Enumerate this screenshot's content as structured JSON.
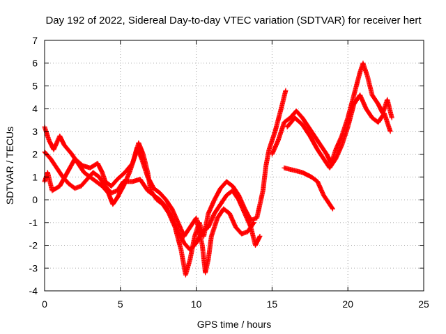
{
  "chart_data": {
    "type": "scatter",
    "title": "Day 192 of 2022, Sidereal Day-to-day VTEC variation (SDTVAR) for receiver hert",
    "xlabel": "GPS time / hours",
    "ylabel": "SDTVAR / TECUs",
    "xlim": [
      0,
      25
    ],
    "ylim": [
      -4,
      7
    ],
    "x_ticks": [
      0,
      5,
      10,
      15,
      20,
      25
    ],
    "y_ticks": [
      -4,
      -3,
      -2,
      -1,
      0,
      1,
      2,
      3,
      4,
      5,
      6,
      7
    ],
    "grid": true,
    "marker": "plus",
    "color": "#ff0000",
    "series": [
      {
        "name": "track-1",
        "points": [
          [
            0.0,
            3.2
          ],
          [
            0.3,
            2.6
          ],
          [
            0.6,
            2.2
          ],
          [
            1.0,
            2.8
          ],
          [
            1.3,
            2.4
          ],
          [
            1.8,
            2.0
          ],
          [
            2.2,
            1.6
          ],
          [
            2.6,
            1.2
          ],
          [
            3.0,
            1.0
          ],
          [
            3.4,
            0.8
          ],
          [
            3.8,
            0.6
          ],
          [
            4.2,
            0.3
          ],
          [
            4.5,
            -0.2
          ],
          [
            4.8,
            0.1
          ],
          [
            5.2,
            0.6
          ],
          [
            5.6,
            1.2
          ],
          [
            6.0,
            2.0
          ],
          [
            6.2,
            2.5
          ],
          [
            6.5,
            2.0
          ],
          [
            6.8,
            1.2
          ],
          [
            7.0,
            0.4
          ],
          [
            7.4,
            0.0
          ],
          [
            7.8,
            -0.2
          ],
          [
            8.2,
            -0.6
          ],
          [
            8.6,
            -1.2
          ],
          [
            9.0,
            -2.2
          ],
          [
            9.3,
            -3.3
          ],
          [
            9.6,
            -2.6
          ],
          [
            9.9,
            -1.6
          ],
          [
            10.2,
            -1.0
          ],
          [
            10.5,
            -1.6
          ],
          [
            10.8,
            -0.6
          ],
          [
            11.2,
            0.0
          ],
          [
            11.6,
            0.5
          ],
          [
            12.0,
            0.8
          ],
          [
            12.4,
            0.6
          ],
          [
            12.8,
            0.2
          ],
          [
            13.2,
            -0.4
          ],
          [
            13.6,
            -0.9
          ],
          [
            14.0,
            -0.8
          ],
          [
            14.2,
            -0.2
          ],
          [
            14.4,
            0.4
          ],
          [
            14.6,
            1.5
          ],
          [
            14.8,
            2.2
          ],
          [
            15.2,
            3.0
          ],
          [
            15.6,
            4.0
          ],
          [
            15.9,
            4.8
          ]
        ]
      },
      {
        "name": "track-2",
        "points": [
          [
            0.0,
            2.1
          ],
          [
            0.4,
            1.8
          ],
          [
            0.8,
            1.4
          ],
          [
            1.2,
            1.0
          ],
          [
            1.6,
            0.7
          ],
          [
            2.0,
            0.5
          ],
          [
            2.4,
            0.6
          ],
          [
            2.8,
            0.9
          ],
          [
            3.2,
            1.2
          ],
          [
            3.6,
            1.0
          ],
          [
            4.0,
            0.6
          ],
          [
            4.4,
            0.3
          ],
          [
            4.8,
            0.4
          ],
          [
            5.2,
            0.8
          ],
          [
            5.8,
            0.8
          ],
          [
            6.3,
            0.9
          ],
          [
            6.8,
            0.4
          ],
          [
            7.2,
            0.2
          ],
          [
            7.6,
            0.0
          ],
          [
            8.0,
            -0.3
          ],
          [
            8.4,
            -0.8
          ],
          [
            8.8,
            -1.4
          ],
          [
            9.2,
            -1.9
          ],
          [
            9.6,
            -2.2
          ],
          [
            10.0,
            -1.9
          ],
          [
            10.4,
            -1.4
          ],
          [
            10.8,
            -1.2
          ],
          [
            11.2,
            -0.6
          ],
          [
            11.6,
            -0.2
          ],
          [
            12.0,
            0.2
          ],
          [
            12.4,
            0.4
          ],
          [
            12.8,
            0.0
          ],
          [
            13.2,
            -0.6
          ],
          [
            13.6,
            -1.2
          ],
          [
            13.9,
            -2.0
          ],
          [
            14.2,
            -1.6
          ]
        ]
      },
      {
        "name": "track-3",
        "points": [
          [
            0.0,
            0.8
          ],
          [
            0.2,
            1.2
          ],
          [
            0.5,
            0.4
          ],
          [
            1.0,
            0.6
          ],
          [
            1.5,
            1.2
          ],
          [
            2.0,
            1.8
          ],
          [
            2.5,
            1.5
          ],
          [
            3.0,
            1.4
          ],
          [
            3.5,
            1.6
          ],
          [
            3.8,
            1.2
          ],
          [
            4.0,
            0.8
          ],
          [
            4.4,
            0.6
          ],
          [
            4.8,
            0.9
          ],
          [
            5.3,
            1.2
          ],
          [
            5.8,
            1.6
          ],
          [
            6.1,
            2.3
          ],
          [
            6.4,
            1.8
          ],
          [
            6.8,
            1.0
          ],
          [
            7.2,
            0.5
          ],
          [
            7.6,
            0.3
          ],
          [
            8.0,
            0.0
          ],
          [
            8.4,
            -0.4
          ],
          [
            8.8,
            -1.0
          ],
          [
            9.2,
            -1.6
          ],
          [
            9.6,
            -1.2
          ],
          [
            10.0,
            -0.8
          ],
          [
            10.4,
            -2.0
          ],
          [
            10.6,
            -3.2
          ],
          [
            10.8,
            -2.6
          ],
          [
            11.0,
            -1.6
          ],
          [
            11.4,
            -0.8
          ],
          [
            11.8,
            -0.4
          ],
          [
            12.2,
            -0.6
          ],
          [
            12.6,
            -1.2
          ],
          [
            13.0,
            -1.5
          ],
          [
            13.4,
            -1.4
          ],
          [
            13.8,
            -1.0
          ]
        ]
      },
      {
        "name": "track-4",
        "points": [
          [
            15.0,
            2.0
          ],
          [
            15.4,
            2.6
          ],
          [
            15.8,
            3.4
          ],
          [
            16.2,
            3.6
          ],
          [
            16.6,
            3.9
          ],
          [
            17.0,
            3.6
          ],
          [
            17.4,
            3.2
          ],
          [
            17.8,
            2.8
          ],
          [
            18.2,
            2.4
          ],
          [
            18.6,
            2.0
          ],
          [
            18.9,
            1.6
          ],
          [
            19.2,
            2.2
          ],
          [
            19.6,
            2.8
          ],
          [
            20.0,
            3.6
          ],
          [
            20.4,
            4.6
          ],
          [
            20.8,
            5.6
          ],
          [
            21.0,
            6.0
          ],
          [
            21.3,
            5.4
          ],
          [
            21.6,
            4.6
          ],
          [
            22.0,
            4.2
          ],
          [
            22.3,
            3.8
          ],
          [
            22.6,
            4.4
          ],
          [
            22.9,
            3.6
          ]
        ]
      },
      {
        "name": "track-5",
        "points": [
          [
            16.0,
            3.2
          ],
          [
            16.5,
            3.6
          ],
          [
            17.0,
            3.3
          ],
          [
            17.5,
            2.8
          ],
          [
            18.0,
            2.2
          ],
          [
            18.4,
            1.8
          ],
          [
            18.8,
            1.4
          ],
          [
            19.2,
            1.8
          ],
          [
            19.6,
            2.4
          ],
          [
            20.0,
            3.2
          ],
          [
            20.4,
            4.2
          ],
          [
            20.8,
            4.6
          ],
          [
            21.2,
            4.0
          ],
          [
            21.6,
            3.6
          ],
          [
            22.0,
            3.4
          ],
          [
            22.4,
            3.8
          ],
          [
            22.8,
            3.0
          ]
        ]
      },
      {
        "name": "track-6",
        "points": [
          [
            15.8,
            1.4
          ],
          [
            16.4,
            1.3
          ],
          [
            17.0,
            1.2
          ],
          [
            17.6,
            1.0
          ],
          [
            18.0,
            0.8
          ],
          [
            18.4,
            0.2
          ],
          [
            18.8,
            -0.2
          ],
          [
            19.0,
            -0.4
          ]
        ]
      }
    ]
  }
}
